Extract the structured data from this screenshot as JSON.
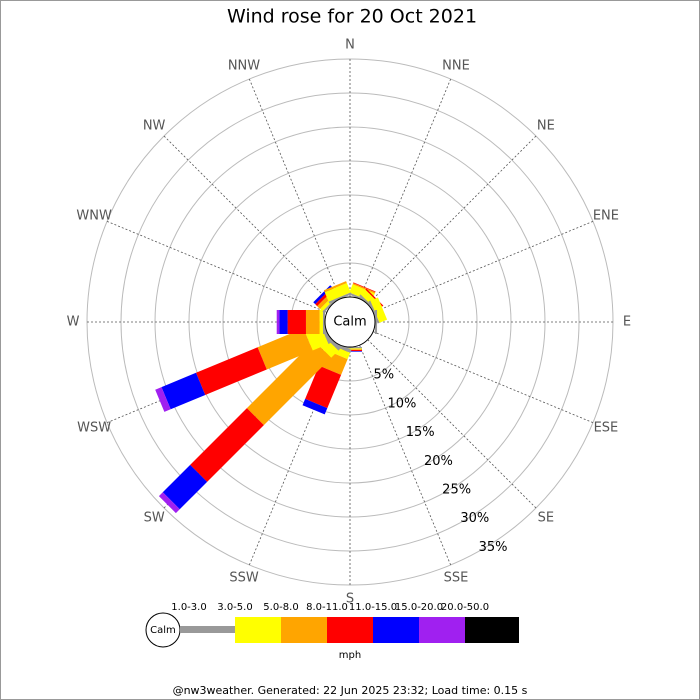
{
  "chart_data": {
    "type": "windrose",
    "title": "Wind rose for 20 Oct 2021",
    "calm_label": "Calm",
    "categories": [
      "N",
      "NNE",
      "NE",
      "ENE",
      "E",
      "ESE",
      "SE",
      "SSE",
      "S",
      "SSW",
      "SW",
      "WSW",
      "W",
      "WNW",
      "NW",
      "NNW"
    ],
    "rlim": [
      0,
      35
    ],
    "rticks": [
      {
        "value": 5,
        "label": "5%"
      },
      {
        "value": 10,
        "label": "10%"
      },
      {
        "value": 15,
        "label": "15%"
      },
      {
        "value": 20,
        "label": "20%"
      },
      {
        "value": 25,
        "label": "25%"
      },
      {
        "value": 30,
        "label": "30%"
      },
      {
        "value": 35,
        "label": "35%"
      }
    ],
    "series": [
      {
        "name": "1.0-3.0",
        "color": "#999999",
        "values": [
          0,
          0.3,
          0.3,
          0.3,
          0.3,
          0,
          0,
          0,
          0.2,
          0.5,
          0.5,
          0.5,
          0.3,
          0,
          0.3,
          0.3
        ]
      },
      {
        "name": "3.0-5.0",
        "color": "#ffff00",
        "values": [
          0,
          1.3,
          1.0,
          1.2,
          0,
          0,
          0,
          0,
          0.2,
          1.0,
          1.5,
          2.5,
          0.5,
          0,
          0.5,
          1.5
        ]
      },
      {
        "name": "5.0-8.0",
        "color": "#ffa500",
        "values": [
          0,
          0.2,
          0,
          0,
          0,
          0,
          0,
          0,
          0,
          2.5,
          14,
          7.3,
          2.0,
          0,
          0.6,
          0.3
        ]
      },
      {
        "name": "8.0-11.0",
        "color": "#ff0000",
        "values": [
          0,
          0.1,
          0.2,
          0,
          0,
          0,
          0,
          0,
          0.2,
          5.3,
          11.8,
          9.8,
          2.7,
          0,
          0.4,
          0
        ]
      },
      {
        "name": "11.0-15.0",
        "color": "#0000ff",
        "values": [
          0,
          0,
          0,
          0,
          0,
          0,
          0,
          0,
          0.1,
          1.0,
          5.7,
          5.5,
          1.2,
          0,
          0.4,
          0
        ]
      },
      {
        "name": "15.0-20.0",
        "color": "#a020f0",
        "values": [
          0,
          0,
          0,
          0,
          0,
          0,
          0,
          0,
          0,
          0,
          0.8,
          1.0,
          0.4,
          0,
          0,
          0
        ]
      },
      {
        "name": "20.0-50.0",
        "color": "#000000",
        "values": [
          0,
          0,
          0,
          0,
          0,
          0,
          0,
          0,
          0,
          0,
          0,
          0,
          0,
          0,
          0,
          0
        ]
      }
    ],
    "units": "mph",
    "footer": "@nw3weather. Generated: 22 Jun 2025 23:32; Load time: 0.15 s"
  }
}
